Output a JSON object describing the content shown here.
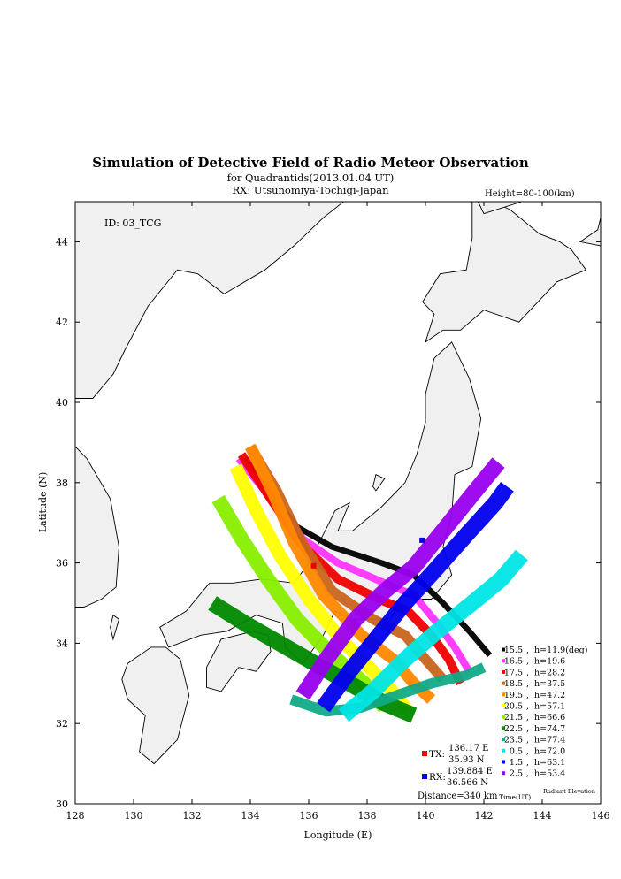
{
  "chart_data": {
    "type": "scatter",
    "title": "Simulation of Detective Field of Radio Meteor Observation",
    "subtitle": "for Quadrantids(2013.01.04 UT)",
    "rx_title": "RX: Utsunomiya-Tochigi-Japan",
    "height_note": "Height=80-100(km)",
    "station_id": "ID: 03_TCG",
    "xlabel": "Longitude (E)",
    "ylabel": "Latitude (N)",
    "xlim": [
      128,
      146
    ],
    "ylim": [
      30,
      45
    ],
    "xticks": [
      128,
      130,
      132,
      134,
      136,
      138,
      140,
      142,
      144,
      146
    ],
    "yticks": [
      30,
      32,
      34,
      36,
      38,
      40,
      42,
      44
    ],
    "legend_header_time": "Time(UT)",
    "legend_header_elev": "Radiant Elevation",
    "series": [
      {
        "time": "15.5",
        "elev": "h=11.9(deg)",
        "color": "#000000",
        "path": [
          [
            133.8,
            38.6
          ],
          [
            134.6,
            37.8
          ],
          [
            135.6,
            36.9
          ],
          [
            136.8,
            36.4
          ],
          [
            138.5,
            36.0
          ],
          [
            139.6,
            35.7
          ],
          [
            140.6,
            35.0
          ],
          [
            141.5,
            34.3
          ],
          [
            142.2,
            33.7
          ]
        ],
        "width": 0.2
      },
      {
        "time": "16.5",
        "elev": "h=19.6",
        "color": "#ff33ff",
        "path": [
          [
            133.6,
            38.6
          ],
          [
            134.6,
            37.7
          ],
          [
            135.8,
            36.6
          ],
          [
            137.0,
            36.0
          ],
          [
            138.6,
            35.5
          ],
          [
            139.6,
            35.2
          ],
          [
            140.4,
            34.5
          ],
          [
            141.0,
            33.9
          ],
          [
            141.5,
            33.3
          ]
        ],
        "width": 0.25
      },
      {
        "time": "17.5",
        "elev": "h=28.2",
        "color": "#ee0000",
        "path": [
          [
            133.7,
            38.7
          ],
          [
            134.6,
            37.7
          ],
          [
            135.7,
            36.5
          ],
          [
            137.0,
            35.6
          ],
          [
            138.4,
            35.1
          ],
          [
            139.4,
            34.8
          ],
          [
            140.2,
            34.2
          ],
          [
            140.8,
            33.6
          ],
          [
            141.2,
            33.0
          ]
        ],
        "width": 0.3
      },
      {
        "time": "18.5",
        "elev": "h=37.5",
        "color": "#c8641e",
        "path": [
          [
            134.0,
            38.9
          ],
          [
            134.9,
            37.8
          ],
          [
            135.7,
            36.6
          ],
          [
            136.8,
            35.3
          ],
          [
            138.2,
            34.6
          ],
          [
            139.3,
            34.2
          ],
          [
            140.0,
            33.6
          ],
          [
            140.6,
            33.1
          ]
        ],
        "width": 0.35
      },
      {
        "time": "19.5",
        "elev": "h=47.2",
        "color": "#ff8800",
        "path": [
          [
            134.0,
            38.9
          ],
          [
            134.8,
            37.7
          ],
          [
            135.5,
            36.5
          ],
          [
            136.5,
            35.2
          ],
          [
            137.8,
            34.2
          ],
          [
            138.9,
            33.6
          ],
          [
            139.6,
            33.0
          ],
          [
            140.2,
            32.6
          ]
        ],
        "width": 0.4
      },
      {
        "time": "20.5",
        "elev": "h=57.1",
        "color": "#ffff00",
        "path": [
          [
            133.5,
            38.4
          ],
          [
            134.2,
            37.3
          ],
          [
            135.0,
            36.2
          ],
          [
            136.0,
            35.1
          ],
          [
            137.1,
            34.1
          ],
          [
            138.2,
            33.3
          ],
          [
            139.0,
            32.7
          ],
          [
            139.4,
            32.3
          ]
        ],
        "width": 0.45
      },
      {
        "time": "21.5",
        "elev": "h=66.6",
        "color": "#88ee00",
        "path": [
          [
            132.9,
            37.6
          ],
          [
            133.7,
            36.6
          ],
          [
            134.6,
            35.6
          ],
          [
            135.6,
            34.6
          ],
          [
            136.8,
            33.7
          ],
          [
            137.9,
            33.0
          ],
          [
            138.6,
            32.4
          ]
        ],
        "width": 0.5
      },
      {
        "time": "22.5",
        "elev": "h=74.7",
        "color": "#008800",
        "path": [
          [
            132.7,
            35.0
          ],
          [
            133.8,
            34.5
          ],
          [
            135.0,
            34.0
          ],
          [
            136.2,
            33.5
          ],
          [
            137.4,
            33.0
          ],
          [
            138.6,
            32.5
          ],
          [
            139.6,
            32.2
          ]
        ],
        "width": 0.55
      },
      {
        "time": "23.5",
        "elev": "h=77.4",
        "color": "#11aa88",
        "path": [
          [
            135.4,
            32.6
          ],
          [
            136.6,
            32.3
          ],
          [
            137.8,
            32.4
          ],
          [
            139.0,
            32.7
          ],
          [
            140.2,
            33.0
          ],
          [
            141.4,
            33.2
          ],
          [
            142.0,
            33.4
          ]
        ],
        "width": 0.35
      },
      {
        "time": "0.5",
        "elev": "h=72.0",
        "color": "#00e5e5",
        "path": [
          [
            137.2,
            32.2
          ],
          [
            138.2,
            32.8
          ],
          [
            139.3,
            33.6
          ],
          [
            140.4,
            34.3
          ],
          [
            141.6,
            35.0
          ],
          [
            142.6,
            35.6
          ],
          [
            143.3,
            36.2
          ]
        ],
        "width": 0.55
      },
      {
        "time": "1.5",
        "elev": "h=63.1",
        "color": "#0000ee",
        "path": [
          [
            136.5,
            32.4
          ],
          [
            137.4,
            33.3
          ],
          [
            138.4,
            34.2
          ],
          [
            139.3,
            35.0
          ],
          [
            140.3,
            35.8
          ],
          [
            141.4,
            36.7
          ],
          [
            142.4,
            37.5
          ],
          [
            142.8,
            37.9
          ]
        ],
        "width": 0.55
      },
      {
        "time": "2.5",
        "elev": "h=53.4",
        "color": "#9900ee",
        "path": [
          [
            135.8,
            32.7
          ],
          [
            136.6,
            33.6
          ],
          [
            137.6,
            34.6
          ],
          [
            138.6,
            35.3
          ],
          [
            139.6,
            35.9
          ],
          [
            140.6,
            36.8
          ],
          [
            141.6,
            37.7
          ],
          [
            142.5,
            38.5
          ]
        ],
        "width": 0.55
      }
    ],
    "tx": {
      "label": "TX:",
      "lon_text": "136.17 E",
      "lat_text": "35.93 N",
      "lon": 136.17,
      "lat": 35.93,
      "color": "#ee0000"
    },
    "rx": {
      "label": "RX:",
      "lon_text": "139.884 E",
      "lat_text": "36.566 N",
      "lon": 139.884,
      "lat": 36.566,
      "color": "#0000ee"
    },
    "distance": "Distance=340 km"
  }
}
